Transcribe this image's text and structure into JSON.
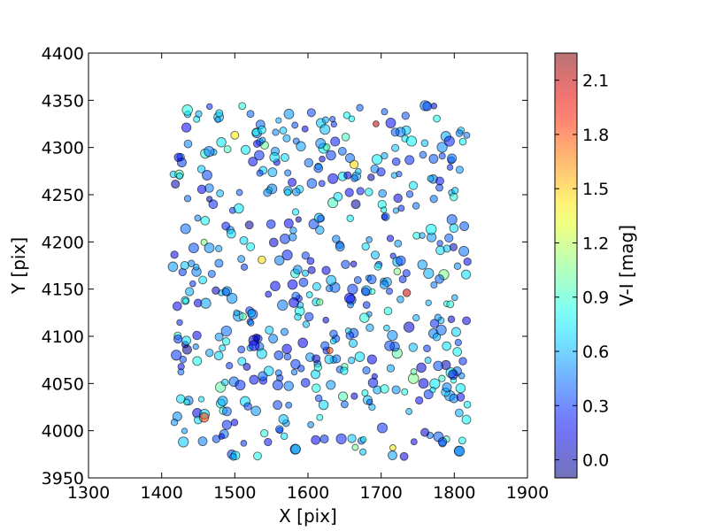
{
  "chart_data": {
    "type": "scatter",
    "title": "",
    "xlabel": "X [pix]",
    "ylabel": "Y [pix]",
    "xlim": [
      1300,
      1900
    ],
    "ylim": [
      3950,
      4400
    ],
    "xticks": [
      "1300",
      "1400",
      "1500",
      "1600",
      "1700",
      "1800",
      "1900"
    ],
    "yticks": [
      "3950",
      "4000",
      "4050",
      "4100",
      "4150",
      "4200",
      "4250",
      "4300",
      "4350",
      "4400"
    ],
    "grid": false,
    "colorbar": {
      "label": "V-I [mag]",
      "range": [
        -0.1,
        2.25
      ],
      "colormap": "jet",
      "alpha": 0.55,
      "ticks": [
        "0.0",
        "0.3",
        "0.6",
        "0.9",
        "1.2",
        "1.5",
        "1.8",
        "2.1"
      ]
    },
    "marker_edge_color": "#000000",
    "notable_points": [
      {
        "x": 1693,
        "y": 4325,
        "vi": 2.1
      },
      {
        "x": 1735,
        "y": 4146,
        "vi": 2.1
      },
      {
        "x": 1458,
        "y": 4014,
        "vi": 1.8
      },
      {
        "x": 1630,
        "y": 4085,
        "vi": 1.75
      },
      {
        "x": 1500,
        "y": 4313,
        "vi": 1.4
      },
      {
        "x": 1716,
        "y": 3982,
        "vi": 1.4
      },
      {
        "x": 1663,
        "y": 4282,
        "vi": 1.45
      },
      {
        "x": 1537,
        "y": 4181,
        "vi": 1.45
      }
    ],
    "field_points": {
      "count": 520,
      "x_range": [
        1412,
        1818
      ],
      "y_range": [
        3972,
        4345
      ],
      "vi_range": [
        -0.05,
        1.2
      ],
      "typical_vi": 0.5
    }
  }
}
